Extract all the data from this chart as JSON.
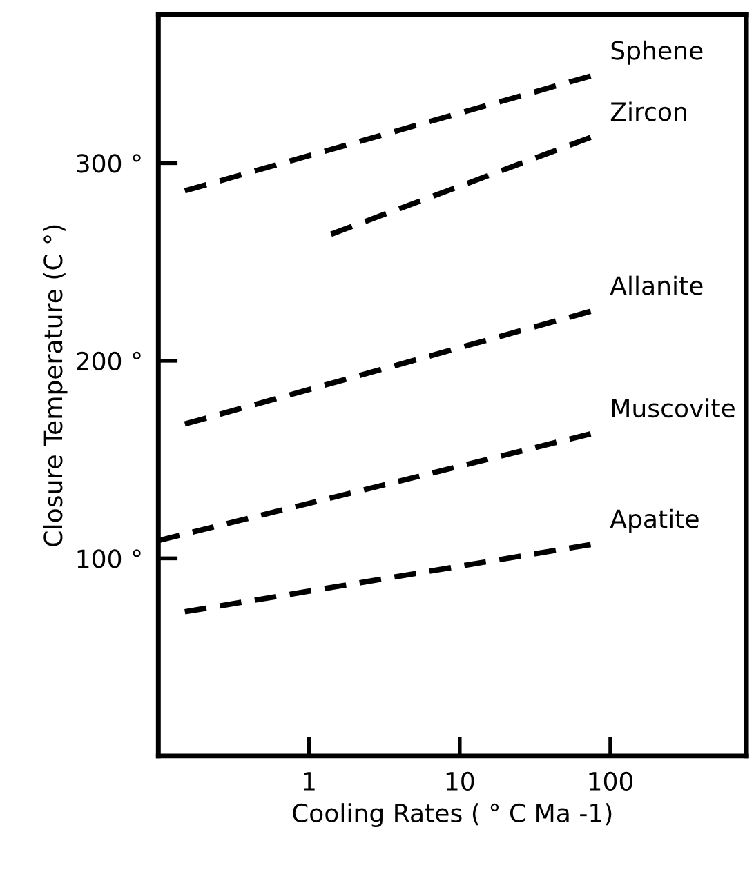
{
  "chart_data": {
    "type": "line",
    "xlabel": "Cooling Rates ( ° C Ma -1)",
    "ylabel": "Closure Temperature (C °)",
    "log": "x",
    "xlim": [
      0.1,
      800
    ],
    "ylim": [
      0,
      375
    ],
    "xticks": [
      1,
      10,
      100
    ],
    "yticks": [
      {
        "value": 100,
        "label": "100 °"
      },
      {
        "value": 200,
        "label": "200 °"
      },
      {
        "value": 300,
        "label": "300 °"
      }
    ],
    "line_style": "dashed",
    "marker": "none",
    "grid": false,
    "legend": false,
    "series": [
      {
        "name": "Sphene",
        "color": "#000000",
        "x": [
          0.15,
          74
        ],
        "values": [
          286,
          344
        ]
      },
      {
        "name": "Zircon",
        "color": "#000000",
        "x": [
          1.4,
          74
        ],
        "values": [
          264,
          313
        ]
      },
      {
        "name": "Allanite",
        "color": "#000000",
        "x": [
          0.15,
          74
        ],
        "values": [
          168,
          225
        ]
      },
      {
        "name": "Muscovite",
        "color": "#000000",
        "x": [
          0.1,
          74
        ],
        "values": [
          109,
          163
        ]
      },
      {
        "name": "Apatite",
        "color": "#000000",
        "x": [
          0.15,
          74
        ],
        "values": [
          73,
          107
        ]
      }
    ]
  }
}
